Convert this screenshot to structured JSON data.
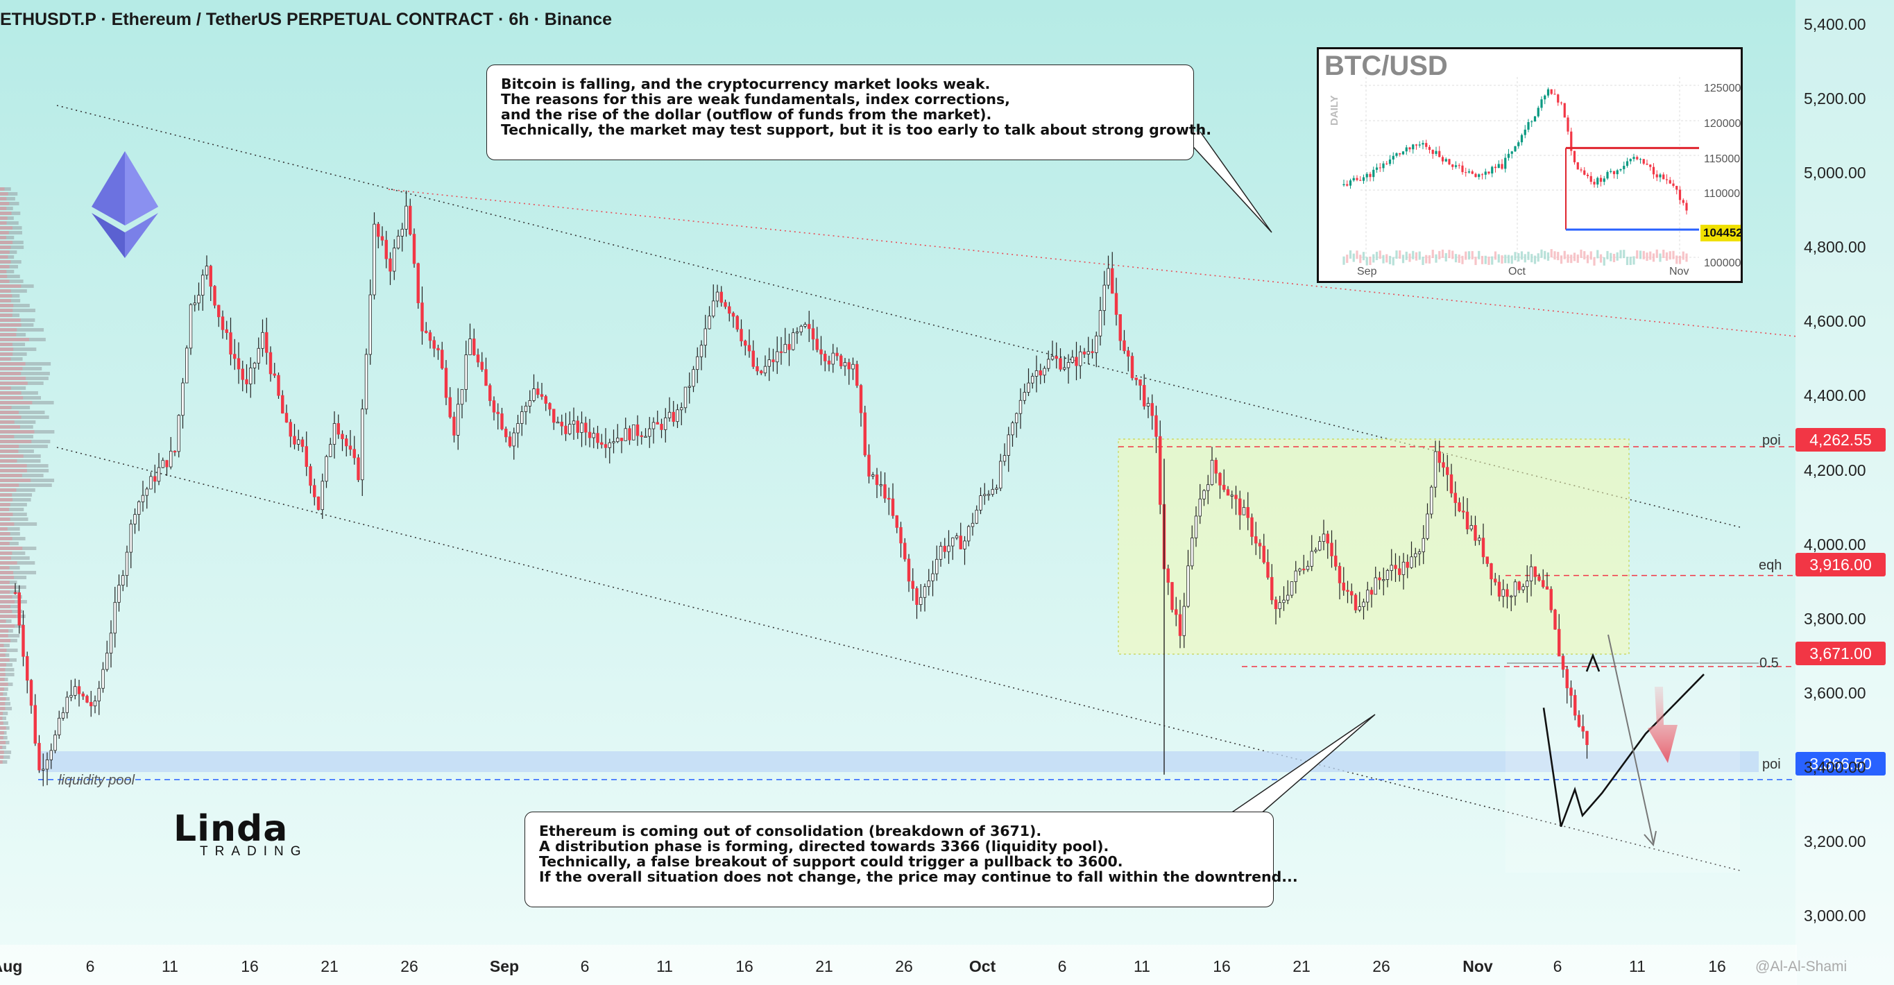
{
  "header": {
    "title": "ETHUSDT.P · Ethereum / TetherUS PERPETUAL CONTRACT · 6h · Binance"
  },
  "callouts": {
    "top": [
      "Bitcoin is falling, and the cryptocurrency market looks weak.",
      "The reasons for this are weak fundamentals, index corrections,",
      "and the rise of the dollar (outflow of funds from the market).",
      "Technically, the market may test support, but it is too early to talk about strong growth."
    ],
    "bottom": [
      "Ethereum is coming out of consolidation (breakdown of 3671).",
      "A distribution phase is forming, directed towards 3366 (liquidity pool).",
      "Technically, a false breakout of support could trigger a pullback to 3600.",
      "If the overall situation does not change, the price may continue to fall within the downtrend..."
    ]
  },
  "levels": [
    {
      "label": "poi",
      "price": "4,262.55",
      "value": 4262.55,
      "color": "#f23645"
    },
    {
      "label": "eqh",
      "price": "3,916.00",
      "value": 3916.0,
      "color": "#f23645"
    },
    {
      "label": "",
      "price": "3,671.00",
      "value": 3671.0,
      "color": "#f23645"
    },
    {
      "label": "poi",
      "price": "3,366.50",
      "value": 3366.5,
      "color": "#2962ff"
    }
  ],
  "fib_label": "0.5",
  "liquidity_label": "liquidity pool",
  "logo": {
    "main": "Linda",
    "sub": "TRADING"
  },
  "watermark": "@Al-Al-Shami",
  "colors": {
    "up": "#089981",
    "down": "#f23645",
    "wick": "#222222",
    "bg_top": "#b9ece8",
    "bg_bottom": "#eafbf8"
  },
  "inset": {
    "title": "BTC/USD",
    "timeframe": "DAILY",
    "y_ticks": [
      "125000",
      "120000",
      "115000",
      "110000",
      "100000"
    ],
    "x_ticks": [
      "Sep",
      "Oct",
      "Nov"
    ],
    "last_price": "104452"
  },
  "chart_data": {
    "type": "candlestick",
    "symbol": "ETHUSDT.P",
    "timeframe": "6h",
    "y_ticks": [
      "5,400.00",
      "5,200.00",
      "5,000.00",
      "4,800.00",
      "4,600.00",
      "4,400.00",
      "4,200.00",
      "4,000.00",
      "3,800.00",
      "3,600.00",
      "3,400.00",
      "3,200.00",
      "3,000.00"
    ],
    "ylim": [
      2950,
      5450
    ],
    "x_ticks": [
      {
        "label": "Aug",
        "bold": true
      },
      {
        "label": "6"
      },
      {
        "label": "11"
      },
      {
        "label": "16"
      },
      {
        "label": "21"
      },
      {
        "label": "26"
      },
      {
        "label": "Sep",
        "bold": true
      },
      {
        "label": "6"
      },
      {
        "label": "11"
      },
      {
        "label": "16"
      },
      {
        "label": "21"
      },
      {
        "label": "26"
      },
      {
        "label": "Oct",
        "bold": true
      },
      {
        "label": "6"
      },
      {
        "label": "11"
      },
      {
        "label": "16"
      },
      {
        "label": "21"
      },
      {
        "label": "26"
      },
      {
        "label": "Nov",
        "bold": true
      },
      {
        "label": "6"
      },
      {
        "label": "11"
      },
      {
        "label": "16"
      }
    ],
    "price_path": [
      [
        0,
        3870
      ],
      [
        4,
        3560
      ],
      [
        6,
        3390
      ],
      [
        10,
        3480
      ],
      [
        14,
        3610
      ],
      [
        20,
        3560
      ],
      [
        24,
        3770
      ],
      [
        30,
        4100
      ],
      [
        36,
        4200
      ],
      [
        40,
        4250
      ],
      [
        44,
        4640
      ],
      [
        48,
        4740
      ],
      [
        52,
        4580
      ],
      [
        58,
        4420
      ],
      [
        62,
        4560
      ],
      [
        68,
        4310
      ],
      [
        72,
        4250
      ],
      [
        76,
        4100
      ],
      [
        80,
        4340
      ],
      [
        86,
        4190
      ],
      [
        90,
        4850
      ],
      [
        94,
        4750
      ],
      [
        98,
        4900
      ],
      [
        102,
        4580
      ],
      [
        106,
        4520
      ],
      [
        110,
        4310
      ],
      [
        114,
        4550
      ],
      [
        118,
        4420
      ],
      [
        124,
        4280
      ],
      [
        130,
        4420
      ],
      [
        136,
        4320
      ],
      [
        142,
        4310
      ],
      [
        148,
        4280
      ],
      [
        154,
        4300
      ],
      [
        160,
        4310
      ],
      [
        166,
        4350
      ],
      [
        170,
        4460
      ],
      [
        176,
        4680
      ],
      [
        180,
        4620
      ],
      [
        186,
        4450
      ],
      [
        192,
        4520
      ],
      [
        198,
        4580
      ],
      [
        204,
        4500
      ],
      [
        210,
        4490
      ],
      [
        214,
        4180
      ],
      [
        218,
        4140
      ],
      [
        222,
        4000
      ],
      [
        226,
        3830
      ],
      [
        232,
        3990
      ],
      [
        238,
        4010
      ],
      [
        242,
        4120
      ],
      [
        246,
        4170
      ],
      [
        250,
        4310
      ],
      [
        254,
        4450
      ],
      [
        260,
        4500
      ],
      [
        264,
        4480
      ],
      [
        270,
        4530
      ],
      [
        274,
        4730
      ],
      [
        278,
        4510
      ],
      [
        282,
        4420
      ],
      [
        286,
        4300
      ],
      [
        288,
        3920
      ],
      [
        292,
        3760
      ],
      [
        296,
        4090
      ],
      [
        300,
        4210
      ],
      [
        304,
        4140
      ],
      [
        308,
        4080
      ],
      [
        312,
        3990
      ],
      [
        316,
        3810
      ],
      [
        320,
        3900
      ],
      [
        324,
        3960
      ],
      [
        328,
        4040
      ],
      [
        332,
        3890
      ],
      [
        336,
        3840
      ],
      [
        340,
        3880
      ],
      [
        344,
        3930
      ],
      [
        348,
        3940
      ],
      [
        352,
        3970
      ],
      [
        356,
        4230
      ],
      [
        360,
        4150
      ],
      [
        364,
        4060
      ],
      [
        368,
        3980
      ],
      [
        372,
        3870
      ],
      [
        376,
        3880
      ],
      [
        380,
        3920
      ],
      [
        384,
        3860
      ],
      [
        388,
        3660
      ],
      [
        392,
        3510
      ],
      [
        394,
        3470
      ]
    ],
    "projection": [
      [
        394,
        3560
      ],
      [
        398,
        3330
      ],
      [
        401,
        3490
      ],
      [
        405,
        3650
      ]
    ],
    "inset_btc": {
      "type": "candlestick",
      "x_ticks": [
        "Sep",
        "Oct",
        "Nov"
      ],
      "y_ticks": [
        125000,
        120000,
        115000,
        110000,
        100000
      ],
      "last": 104452
    }
  }
}
